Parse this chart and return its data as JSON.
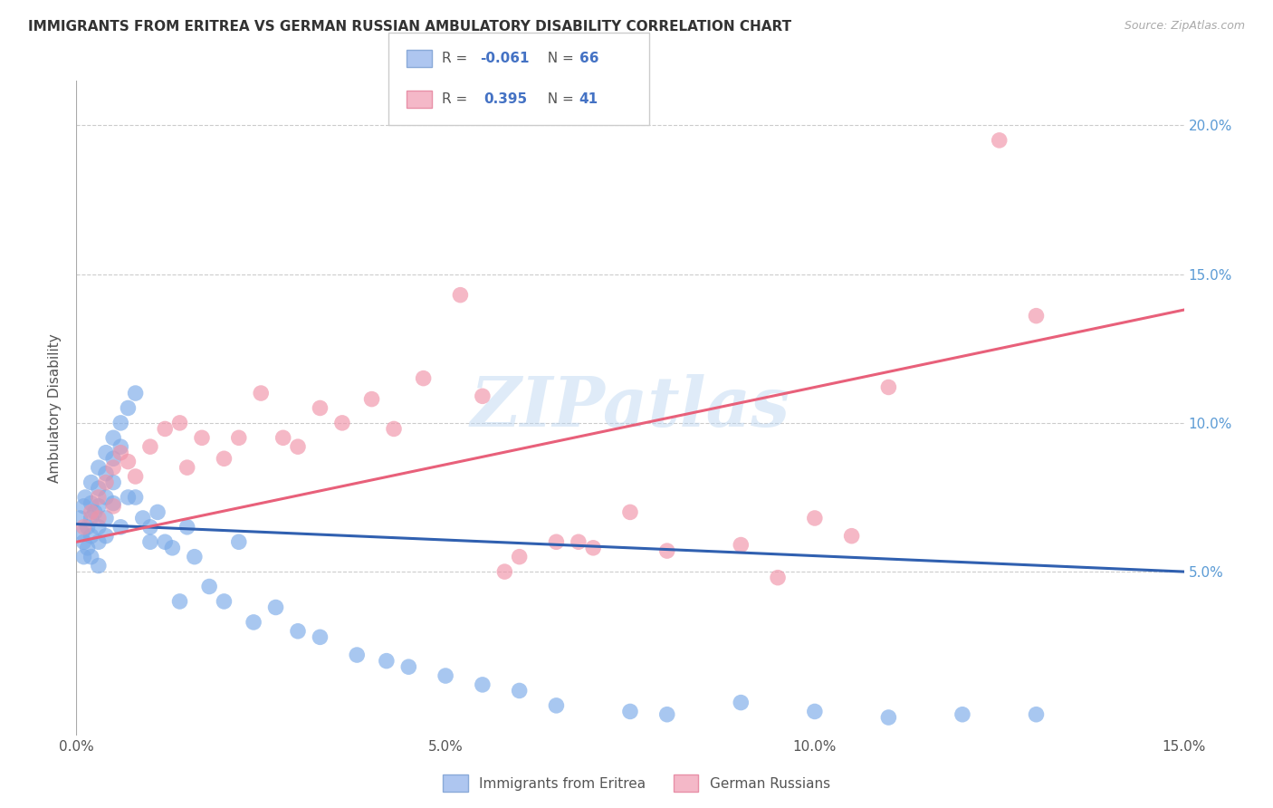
{
  "title": "IMMIGRANTS FROM ERITREA VS GERMAN RUSSIAN AMBULATORY DISABILITY CORRELATION CHART",
  "source": "Source: ZipAtlas.com",
  "ylabel": "Ambulatory Disability",
  "xlim": [
    0.0,
    0.15
  ],
  "ylim": [
    -0.005,
    0.215
  ],
  "xticks": [
    0.0,
    0.05,
    0.1,
    0.15
  ],
  "yticks": [
    0.05,
    0.1,
    0.15,
    0.2
  ],
  "ytick_labels_right": [
    "5.0%",
    "10.0%",
    "15.0%",
    "20.0%"
  ],
  "xtick_labels": [
    "0.0%",
    "5.0%",
    "10.0%",
    "15.0%"
  ],
  "series1_color": "#7aaae8",
  "series2_color": "#f093a8",
  "series1_edgecolor": "#6699dd",
  "series2_edgecolor": "#e8708a",
  "trend1_color": "#3060b0",
  "trend2_color": "#e8607a",
  "trend1_y0": 0.066,
  "trend1_y1": 0.05,
  "trend2_y0": 0.06,
  "trend2_y1": 0.138,
  "watermark": "ZIPatlas",
  "background_color": "#ffffff",
  "grid_color": "#cccccc",
  "series1_x": [
    0.0005,
    0.0008,
    0.001,
    0.001,
    0.001,
    0.0012,
    0.0015,
    0.0015,
    0.002,
    0.002,
    0.002,
    0.002,
    0.002,
    0.0025,
    0.003,
    0.003,
    0.003,
    0.003,
    0.003,
    0.003,
    0.004,
    0.004,
    0.004,
    0.004,
    0.004,
    0.005,
    0.005,
    0.005,
    0.005,
    0.006,
    0.006,
    0.006,
    0.007,
    0.007,
    0.008,
    0.008,
    0.009,
    0.01,
    0.01,
    0.011,
    0.012,
    0.013,
    0.014,
    0.015,
    0.016,
    0.018,
    0.02,
    0.022,
    0.024,
    0.027,
    0.03,
    0.033,
    0.038,
    0.042,
    0.045,
    0.05,
    0.055,
    0.06,
    0.065,
    0.075,
    0.08,
    0.09,
    0.1,
    0.11,
    0.12,
    0.13
  ],
  "series1_y": [
    0.068,
    0.063,
    0.072,
    0.06,
    0.055,
    0.075,
    0.065,
    0.058,
    0.08,
    0.073,
    0.068,
    0.062,
    0.055,
    0.07,
    0.085,
    0.078,
    0.072,
    0.065,
    0.06,
    0.052,
    0.09,
    0.083,
    0.075,
    0.068,
    0.062,
    0.095,
    0.088,
    0.08,
    0.073,
    0.1,
    0.092,
    0.065,
    0.105,
    0.075,
    0.11,
    0.075,
    0.068,
    0.065,
    0.06,
    0.07,
    0.06,
    0.058,
    0.04,
    0.065,
    0.055,
    0.045,
    0.04,
    0.06,
    0.033,
    0.038,
    0.03,
    0.028,
    0.022,
    0.02,
    0.018,
    0.015,
    0.012,
    0.01,
    0.005,
    0.003,
    0.002,
    0.006,
    0.003,
    0.001,
    0.002,
    0.002
  ],
  "series2_x": [
    0.001,
    0.002,
    0.003,
    0.003,
    0.004,
    0.005,
    0.005,
    0.006,
    0.007,
    0.008,
    0.01,
    0.012,
    0.014,
    0.015,
    0.017,
    0.02,
    0.022,
    0.025,
    0.028,
    0.03,
    0.033,
    0.036,
    0.04,
    0.043,
    0.047,
    0.052,
    0.055,
    0.058,
    0.06,
    0.065,
    0.068,
    0.07,
    0.075,
    0.08,
    0.09,
    0.095,
    0.1,
    0.105,
    0.11,
    0.125,
    0.13
  ],
  "series2_y": [
    0.065,
    0.07,
    0.075,
    0.068,
    0.08,
    0.085,
    0.072,
    0.09,
    0.087,
    0.082,
    0.092,
    0.098,
    0.1,
    0.085,
    0.095,
    0.088,
    0.095,
    0.11,
    0.095,
    0.092,
    0.105,
    0.1,
    0.108,
    0.098,
    0.115,
    0.143,
    0.109,
    0.05,
    0.055,
    0.06,
    0.06,
    0.058,
    0.07,
    0.057,
    0.059,
    0.048,
    0.068,
    0.062,
    0.112,
    0.195,
    0.136
  ]
}
